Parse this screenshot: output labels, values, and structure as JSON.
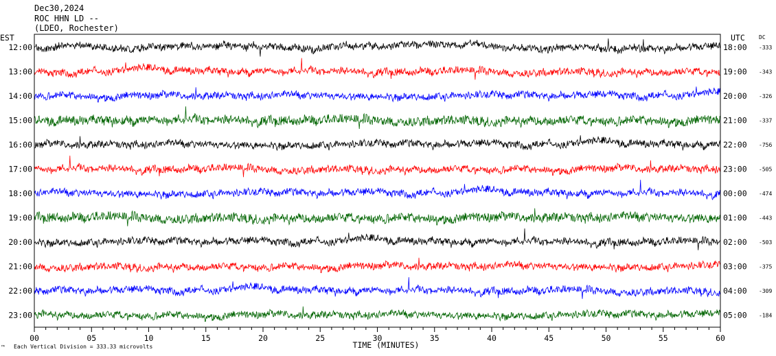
{
  "header": {
    "date": "Dec30,2024",
    "station": "ROC HHN LD --",
    "network": "(LDEO, Rochester)"
  },
  "left_axis_label": "EST",
  "right_axis_label": "UTC",
  "dc_header": "DC",
  "x_axis_title": "TIME (MINUTES)",
  "footer": {
    "symbol": "™",
    "scale_note": "Each Vertical Division =  333.33 microvolts"
  },
  "colors": {
    "black": "#000000",
    "red": "#ff0000",
    "blue": "#0000ff",
    "green": "#006400"
  },
  "chart_data": {
    "type": "line",
    "xlim": [
      0,
      60
    ],
    "x_ticks": [
      "00",
      "05",
      "10",
      "15",
      "20",
      "25",
      "30",
      "35",
      "40",
      "45",
      "50",
      "55",
      "60"
    ],
    "rows": [
      {
        "est": "12:00",
        "utc": "18:00",
        "dc": "-333",
        "color": "black"
      },
      {
        "est": "13:00",
        "utc": "19:00",
        "dc": "-343",
        "color": "red"
      },
      {
        "est": "14:00",
        "utc": "20:00",
        "dc": "-326",
        "color": "blue"
      },
      {
        "est": "15:00",
        "utc": "21:00",
        "dc": "-337",
        "color": "green"
      },
      {
        "est": "16:00",
        "utc": "22:00",
        "dc": "-756",
        "color": "black"
      },
      {
        "est": "17:00",
        "utc": "23:00",
        "dc": "-505",
        "color": "red"
      },
      {
        "est": "18:00",
        "utc": "00:00",
        "dc": "-474",
        "color": "blue"
      },
      {
        "est": "19:00",
        "utc": "01:00",
        "dc": "-443",
        "color": "green"
      },
      {
        "est": "20:00",
        "utc": "02:00",
        "dc": "-503",
        "color": "black"
      },
      {
        "est": "21:00",
        "utc": "03:00",
        "dc": "-375",
        "color": "red"
      },
      {
        "est": "22:00",
        "utc": "04:00",
        "dc": "-309",
        "color": "blue"
      },
      {
        "est": "23:00",
        "utc": "05:00",
        "dc": "-184",
        "color": "green"
      }
    ]
  }
}
